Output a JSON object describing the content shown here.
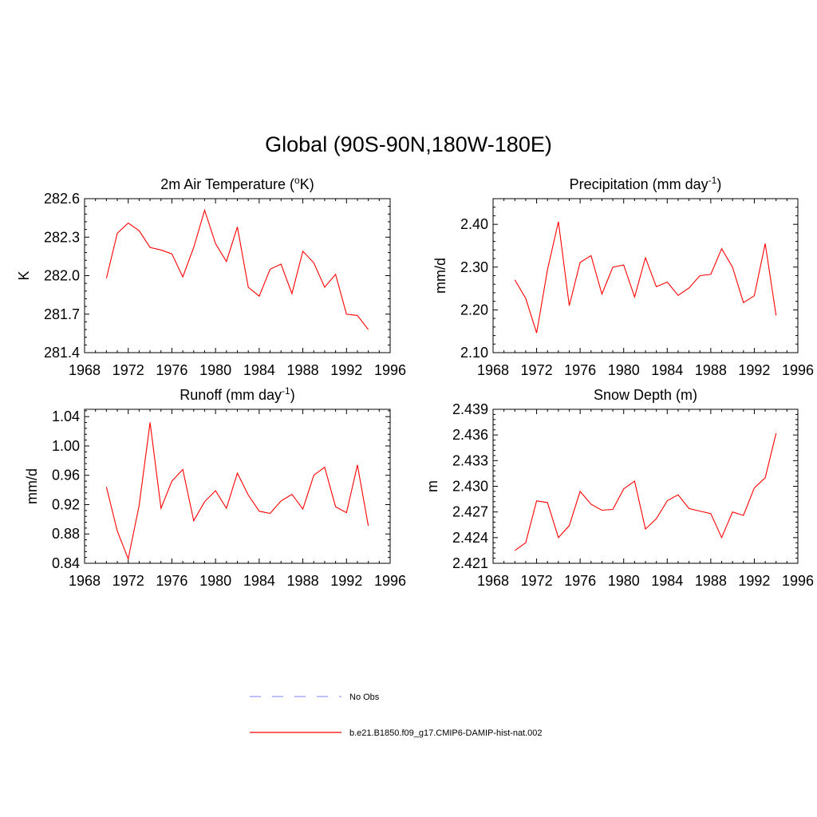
{
  "figure": {
    "title": "Global (90S-90N,180W-180E)"
  },
  "legend": {
    "obs_label": "No Obs",
    "obs_color": "#9999ff",
    "model_label": "b.e21.B1850.f09_g17.CMIP6-DAMIP-hist-nat.002",
    "model_color": "#ff0000"
  },
  "chart_data": [
    {
      "type": "line",
      "title": "2m Air Temperature (",
      "title_sup": "o",
      "title_post": "K)",
      "ylabel": "K",
      "xlim": [
        1968,
        1996
      ],
      "ylim": [
        281.4,
        282.6
      ],
      "xticks": [
        "1968",
        "1972",
        "1976",
        "1980",
        "1984",
        "1988",
        "1992",
        "1996"
      ],
      "yticks": [
        "281.4",
        "281.7",
        "282.0",
        "282.3",
        "282.6"
      ],
      "series": [
        {
          "color": "#ff0000",
          "x": [
            1970,
            1971,
            1972,
            1973,
            1974,
            1975,
            1976,
            1977,
            1978,
            1979,
            1980,
            1981,
            1982,
            1983,
            1984,
            1985,
            1986,
            1987,
            1988,
            1989,
            1990,
            1991,
            1992,
            1993,
            1994
          ],
          "y": [
            281.98,
            282.33,
            282.41,
            282.35,
            282.22,
            282.2,
            282.17,
            281.99,
            282.22,
            282.51,
            282.25,
            282.11,
            282.38,
            281.91,
            281.84,
            282.05,
            282.09,
            281.86,
            282.19,
            282.1,
            281.91,
            282.01,
            281.7,
            281.69,
            281.58
          ]
        }
      ]
    },
    {
      "type": "line",
      "title": "Precipitation (mm day",
      "title_sup": "-1",
      "title_post": ")",
      "ylabel": "mm/d",
      "xlim": [
        1968,
        1996
      ],
      "ylim": [
        2.1,
        2.46
      ],
      "xticks": [
        "1968",
        "1972",
        "1976",
        "1980",
        "1984",
        "1988",
        "1992",
        "1996"
      ],
      "yticks": [
        "2.10",
        "2.20",
        "2.30",
        "2.40"
      ],
      "series": [
        {
          "color": "#ff0000",
          "x": [
            1970,
            1971,
            1972,
            1973,
            1974,
            1975,
            1976,
            1977,
            1978,
            1979,
            1980,
            1981,
            1982,
            1983,
            1984,
            1985,
            1986,
            1987,
            1988,
            1989,
            1990,
            1991,
            1992,
            1993,
            1994
          ],
          "y": [
            2.27,
            2.227,
            2.146,
            2.294,
            2.406,
            2.21,
            2.311,
            2.327,
            2.237,
            2.3,
            2.305,
            2.23,
            2.322,
            2.254,
            2.265,
            2.234,
            2.251,
            2.28,
            2.283,
            2.343,
            2.3,
            2.217,
            2.233,
            2.355,
            2.187
          ]
        }
      ]
    },
    {
      "type": "line",
      "title": "Runoff (mm day",
      "title_sup": "-1",
      "title_post": ")",
      "ylabel": "mm/d",
      "xlim": [
        1968,
        1996
      ],
      "ylim": [
        0.84,
        1.05
      ],
      "xticks": [
        "1968",
        "1972",
        "1976",
        "1980",
        "1984",
        "1988",
        "1992",
        "1996"
      ],
      "yticks": [
        "0.84",
        "0.88",
        "0.92",
        "0.96",
        "1.00",
        "1.04"
      ],
      "series": [
        {
          "color": "#ff0000",
          "x": [
            1970,
            1971,
            1972,
            1973,
            1974,
            1975,
            1976,
            1977,
            1978,
            1979,
            1980,
            1981,
            1982,
            1983,
            1984,
            1985,
            1986,
            1987,
            1988,
            1989,
            1990,
            1991,
            1992,
            1993,
            1994
          ],
          "y": [
            0.944,
            0.884,
            0.846,
            0.919,
            1.032,
            0.915,
            0.952,
            0.968,
            0.898,
            0.924,
            0.939,
            0.915,
            0.963,
            0.933,
            0.911,
            0.908,
            0.925,
            0.934,
            0.914,
            0.96,
            0.971,
            0.917,
            0.909,
            0.974,
            0.891
          ]
        }
      ]
    },
    {
      "type": "line",
      "title": "Snow Depth (m)",
      "title_sup": "",
      "title_post": "",
      "ylabel": "m",
      "xlim": [
        1968,
        1996
      ],
      "ylim": [
        2.421,
        2.439
      ],
      "xticks": [
        "1968",
        "1972",
        "1976",
        "1980",
        "1984",
        "1988",
        "1992",
        "1996"
      ],
      "yticks": [
        "2.421",
        "2.424",
        "2.427",
        "2.430",
        "2.433",
        "2.436",
        "2.439"
      ],
      "series": [
        {
          "color": "#ff0000",
          "x": [
            1970,
            1971,
            1972,
            1973,
            1974,
            1975,
            1976,
            1977,
            1978,
            1979,
            1980,
            1981,
            1982,
            1983,
            1984,
            1985,
            1986,
            1987,
            1988,
            1989,
            1990,
            1991,
            1992,
            1993,
            1994
          ],
          "y": [
            2.4225,
            2.4234,
            2.4283,
            2.4281,
            2.424,
            2.4254,
            2.4294,
            2.4279,
            2.4272,
            2.4273,
            2.4297,
            2.4306,
            2.425,
            2.4262,
            2.4283,
            2.429,
            2.4274,
            2.4271,
            2.4268,
            2.424,
            2.427,
            2.4266,
            2.4298,
            2.431,
            2.4362
          ]
        }
      ]
    }
  ]
}
